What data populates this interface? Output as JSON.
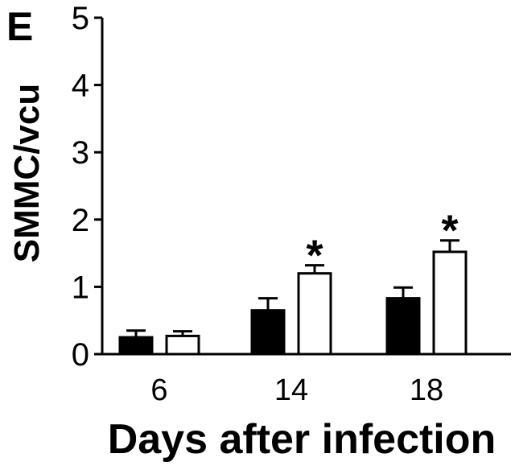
{
  "panel_label": "E",
  "chart_data": {
    "type": "bar",
    "categories": [
      "6",
      "14",
      "18"
    ],
    "series": [
      {
        "values": [
          0.25,
          0.65,
          0.83
        ],
        "errors": [
          0.1,
          0.18,
          0.16
        ],
        "color": "#000000",
        "fill": "solid"
      },
      {
        "values": [
          0.27,
          1.2,
          1.52
        ],
        "errors": [
          0.07,
          0.12,
          0.17
        ],
        "color": "#000000",
        "fill": "open"
      }
    ],
    "significance": [
      {
        "category": "14",
        "series": 1,
        "mark": "*"
      },
      {
        "category": "18",
        "series": 1,
        "mark": "*"
      }
    ],
    "xlabel": "Days after infection",
    "ylabel": "SMMC/vcu",
    "ylim": [
      0,
      5
    ],
    "yticks": [
      "0",
      "1",
      "2",
      "3",
      "4",
      "5"
    ],
    "grid": false,
    "legend": "none"
  }
}
